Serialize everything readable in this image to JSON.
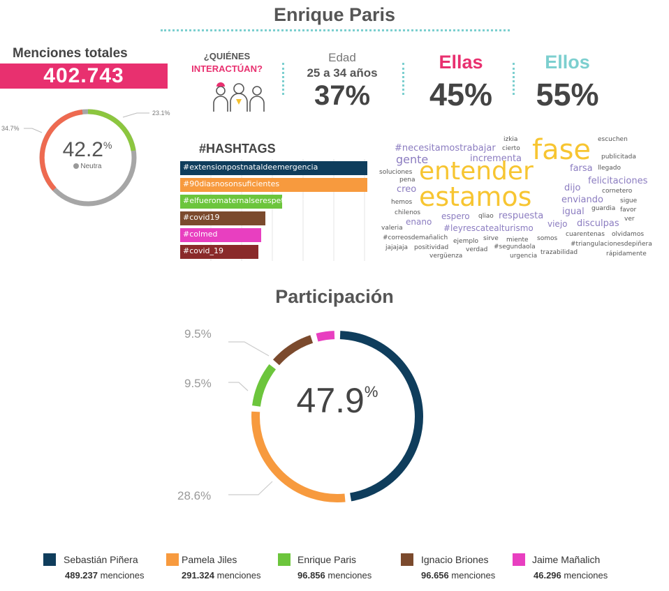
{
  "header": {
    "title": "Enrique Paris"
  },
  "menciones": {
    "label": "Menciones totales",
    "value": "402.743"
  },
  "interactuan": {
    "line1": "¿QUIÉNES",
    "line2": "INTERACTÚAN?"
  },
  "edad": {
    "label": "Edad",
    "range": "25 a 34 años",
    "percent": "37%"
  },
  "ellas": {
    "label": "Ellas",
    "percent": "45%"
  },
  "ellos": {
    "label": "Ellos",
    "percent": "55%"
  },
  "sentiment": {
    "center_value": "42.2",
    "center_unit": "%",
    "center_label": "Neutra",
    "label_positive": "23.1%",
    "label_negative": "34.7%",
    "colors": {
      "positive": "#8cc63f",
      "negative": "#ee6a50",
      "neutral": "#a6a6a6"
    }
  },
  "hashtags": {
    "title": "#HASHTAGS",
    "items": [
      {
        "tag": "#extensionpostnataldeemergencia",
        "color": "#0f3d5c"
      },
      {
        "tag": "#90diasnosonsuficientes",
        "color": "#f79a3e"
      },
      {
        "tag": "#elfueromaternalserespetanoafc",
        "color": "#6cc53c"
      },
      {
        "tag": "#covid19",
        "color": "#7b4a2d"
      },
      {
        "tag": "#colmed",
        "color": "#e83fc0"
      },
      {
        "tag": "#covid_19",
        "color": "#8a2a2a"
      }
    ]
  },
  "wordcloud": {
    "words": [
      {
        "text": "izkia"
      },
      {
        "text": "escuchen"
      },
      {
        "text": "#necesitamostrabajar"
      },
      {
        "text": "cierto"
      },
      {
        "text": "fase"
      },
      {
        "text": "publicitada"
      },
      {
        "text": "gente"
      },
      {
        "text": "incrementa"
      },
      {
        "text": "farsa"
      },
      {
        "text": "llegado"
      },
      {
        "text": "soluciones"
      },
      {
        "text": "entender"
      },
      {
        "text": "pena"
      },
      {
        "text": "felicitaciones"
      },
      {
        "text": "creo"
      },
      {
        "text": "dijo"
      },
      {
        "text": "cornetero"
      },
      {
        "text": "estamos"
      },
      {
        "text": "hemos"
      },
      {
        "text": "enviando"
      },
      {
        "text": "sigue"
      },
      {
        "text": "guardia"
      },
      {
        "text": "favor"
      },
      {
        "text": "chilenos"
      },
      {
        "text": "igual"
      },
      {
        "text": "espero"
      },
      {
        "text": "qliao"
      },
      {
        "text": "respuesta"
      },
      {
        "text": "ver"
      },
      {
        "text": "enano"
      },
      {
        "text": "viejo"
      },
      {
        "text": "disculpas"
      },
      {
        "text": "valeria"
      },
      {
        "text": "#leyrescatealturismo"
      },
      {
        "text": "cuarentenas"
      },
      {
        "text": "olvidamos"
      },
      {
        "text": "#correosdemañalich"
      },
      {
        "text": "ejemplo"
      },
      {
        "text": "sirve"
      },
      {
        "text": "miente"
      },
      {
        "text": "somos"
      },
      {
        "text": "#triangulacionesdepiñera"
      },
      {
        "text": "jajajaja"
      },
      {
        "text": "positividad"
      },
      {
        "text": "verdad"
      },
      {
        "text": "#segundaola"
      },
      {
        "text": "trazabilidad"
      },
      {
        "text": "rápidamente"
      },
      {
        "text": "vergüenza"
      },
      {
        "text": "urgencia"
      }
    ]
  },
  "participacion": {
    "title": "Participación",
    "center_value": "47.9",
    "center_unit": "%",
    "labels": {
      "top": "9.5%",
      "middle": "9.5%",
      "bottom": "28.6%"
    }
  },
  "chart_data": {
    "type": "pie",
    "title": "Participación",
    "categories": [
      "Sebastián Piñera",
      "Pamela Jiles",
      "Enrique Paris",
      "Ignacio Briones",
      "Jaime Mañalich"
    ],
    "values": [
      489237,
      291324,
      96856,
      96656,
      46296
    ],
    "value_labels": [
      "489.237",
      "291.324",
      "96.856",
      "96.656",
      "46.296"
    ],
    "percent": [
      47.9,
      28.6,
      9.5,
      9.5,
      4.5
    ],
    "colors": [
      "#0f3d5c",
      "#f79a3e",
      "#6cc53c",
      "#7b4a2d",
      "#e83fc0"
    ],
    "unit_label": "menciones"
  }
}
